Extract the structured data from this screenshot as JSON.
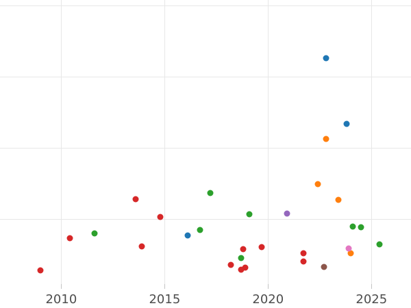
{
  "chart_data": {
    "type": "scatter",
    "grid": true,
    "legend_visible": false,
    "x_axis": {
      "tick_labels": [
        "2010",
        "2015",
        "2020",
        "2025"
      ],
      "tick_years": [
        2010,
        2015,
        2020,
        2025
      ],
      "range_years": [
        2007.04,
        2026.91
      ]
    },
    "y_axis": {
      "tick_labels_visible": false,
      "note": "y-axis labels cropped out of view; values in gridline units from plot bottom",
      "gridline_values": [
        1,
        2,
        3,
        4
      ],
      "range": [
        0.09,
        4.08
      ]
    },
    "series": [
      {
        "name": "blue",
        "color": "#1f77b4",
        "points": [
          {
            "year": 2022.8,
            "y": 3.26
          },
          {
            "year": 2023.8,
            "y": 2.34
          },
          {
            "year": 2016.1,
            "y": 0.77
          }
        ]
      },
      {
        "name": "orange",
        "color": "#ff7f0e",
        "points": [
          {
            "year": 2022.8,
            "y": 2.13
          },
          {
            "year": 2022.4,
            "y": 1.49
          },
          {
            "year": 2023.4,
            "y": 1.27
          },
          {
            "year": 2024.0,
            "y": 0.52
          }
        ]
      },
      {
        "name": "green",
        "color": "#2ca02c",
        "points": [
          {
            "year": 2017.2,
            "y": 1.37
          },
          {
            "year": 2019.1,
            "y": 1.07
          },
          {
            "year": 2024.1,
            "y": 0.9
          },
          {
            "year": 2024.5,
            "y": 0.89
          },
          {
            "year": 2016.7,
            "y": 0.85
          },
          {
            "year": 2011.6,
            "y": 0.8
          },
          {
            "year": 2018.7,
            "y": 0.46
          },
          {
            "year": 2025.4,
            "y": 0.65
          }
        ]
      },
      {
        "name": "red",
        "color": "#d62728",
        "points": [
          {
            "year": 2009.0,
            "y": 0.28
          },
          {
            "year": 2010.4,
            "y": 0.73
          },
          {
            "year": 2013.6,
            "y": 1.28
          },
          {
            "year": 2013.9,
            "y": 0.62
          },
          {
            "year": 2014.8,
            "y": 1.03
          },
          {
            "year": 2018.2,
            "y": 0.36
          },
          {
            "year": 2018.7,
            "y": 0.29
          },
          {
            "year": 2018.8,
            "y": 0.58
          },
          {
            "year": 2018.9,
            "y": 0.32
          },
          {
            "year": 2019.7,
            "y": 0.61
          },
          {
            "year": 2021.7,
            "y": 0.52
          },
          {
            "year": 2021.7,
            "y": 0.41
          }
        ]
      },
      {
        "name": "purple",
        "color": "#9467bd",
        "points": [
          {
            "year": 2020.9,
            "y": 1.08
          }
        ]
      },
      {
        "name": "brown",
        "color": "#8c564b",
        "points": [
          {
            "year": 2022.7,
            "y": 0.33
          }
        ]
      },
      {
        "name": "pink",
        "color": "#e377c2",
        "points": [
          {
            "year": 2023.9,
            "y": 0.59
          }
        ]
      }
    ]
  }
}
